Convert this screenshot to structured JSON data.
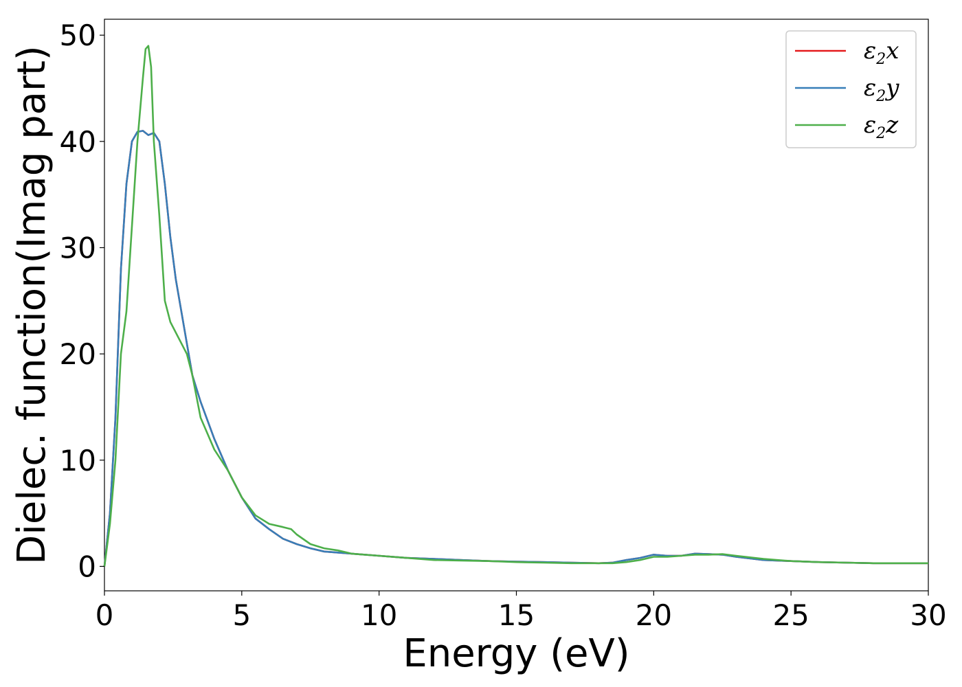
{
  "chart_data": {
    "type": "line",
    "title": "",
    "xlabel": "Energy (eV)",
    "ylabel": "Dielec. function(Imag part)",
    "xlim": [
      0,
      30
    ],
    "ylim": [
      -2.3,
      51.5
    ],
    "xticks": [
      0,
      5,
      10,
      15,
      20,
      25,
      30
    ],
    "xtick_labels": [
      "0",
      "5",
      "10",
      "15",
      "20",
      "25",
      "30"
    ],
    "yticks": [
      0,
      10,
      20,
      30,
      40,
      50
    ],
    "ytick_labels": [
      "0",
      "10",
      "20",
      "30",
      "40",
      "50"
    ],
    "grid": false,
    "legend_position": "top-right",
    "series": [
      {
        "name": "ε2x",
        "legend_base": "ε",
        "legend_sub": "2",
        "legend_suffix": "x",
        "color": "#e41a1c",
        "x": [
          0,
          0.2,
          0.4,
          0.6,
          0.8,
          1.0,
          1.2,
          1.4,
          1.5,
          1.6,
          1.8,
          2.0,
          2.2,
          2.4,
          2.6,
          3.0,
          3.2,
          3.5,
          4.0,
          4.5,
          5.0,
          5.5,
          6.0,
          6.5,
          7.0,
          7.5,
          8.0,
          9.0,
          10,
          11,
          12,
          13,
          14,
          15,
          16,
          17,
          18,
          18.5,
          19,
          19.5,
          20,
          20.5,
          21,
          21.5,
          22,
          22.5,
          23,
          24,
          25,
          26,
          27,
          28,
          29,
          30
        ],
        "y": [
          0,
          5,
          14,
          28,
          36,
          40,
          40.9,
          41,
          40.8,
          40.6,
          40.8,
          40,
          36,
          31,
          27,
          21,
          18,
          15.5,
          12,
          9,
          6.5,
          4.5,
          3.5,
          2.6,
          2.1,
          1.7,
          1.4,
          1.2,
          1.0,
          0.8,
          0.7,
          0.6,
          0.5,
          0.45,
          0.4,
          0.35,
          0.3,
          0.35,
          0.6,
          0.8,
          1.1,
          1.0,
          1.0,
          1.2,
          1.15,
          1.1,
          0.9,
          0.6,
          0.5,
          0.4,
          0.35,
          0.3,
          0.3,
          0.3
        ]
      },
      {
        "name": "ε2y",
        "legend_base": "ε",
        "legend_sub": "2",
        "legend_suffix": "y",
        "color": "#377eb8",
        "x": [
          0,
          0.2,
          0.4,
          0.6,
          0.8,
          1.0,
          1.2,
          1.4,
          1.5,
          1.6,
          1.8,
          2.0,
          2.2,
          2.4,
          2.6,
          3.0,
          3.2,
          3.5,
          4.0,
          4.5,
          5.0,
          5.5,
          6.0,
          6.5,
          7.0,
          7.5,
          8.0,
          9.0,
          10,
          11,
          12,
          13,
          14,
          15,
          16,
          17,
          18,
          18.5,
          19,
          19.5,
          20,
          20.5,
          21,
          21.5,
          22,
          22.5,
          23,
          24,
          25,
          26,
          27,
          28,
          29,
          30
        ],
        "y": [
          0,
          5,
          14,
          28,
          36,
          40,
          40.9,
          41,
          40.8,
          40.6,
          40.8,
          40,
          36,
          31,
          27,
          21,
          18,
          15.5,
          12,
          9,
          6.5,
          4.5,
          3.5,
          2.6,
          2.1,
          1.7,
          1.4,
          1.2,
          1.0,
          0.8,
          0.7,
          0.6,
          0.5,
          0.45,
          0.4,
          0.35,
          0.3,
          0.35,
          0.6,
          0.8,
          1.1,
          1.0,
          1.0,
          1.2,
          1.15,
          1.1,
          0.9,
          0.6,
          0.5,
          0.4,
          0.35,
          0.3,
          0.3,
          0.3
        ]
      },
      {
        "name": "ε2z",
        "legend_base": "ε",
        "legend_sub": "2",
        "legend_suffix": "z",
        "color": "#4daf4a",
        "x": [
          0,
          0.2,
          0.4,
          0.6,
          0.8,
          1.0,
          1.2,
          1.4,
          1.5,
          1.6,
          1.7,
          1.8,
          2.0,
          2.2,
          2.4,
          2.6,
          3.0,
          3.2,
          3.5,
          4.0,
          4.5,
          5.0,
          5.5,
          6.0,
          6.5,
          6.8,
          7.0,
          7.5,
          8.0,
          8.5,
          9.0,
          10,
          11,
          12,
          13,
          14,
          15,
          16,
          17,
          18,
          18.5,
          19,
          19.5,
          20,
          20.5,
          21,
          21.5,
          22,
          22.5,
          23,
          24,
          25,
          26,
          27,
          28,
          29,
          30
        ],
        "y": [
          0,
          4,
          10,
          20,
          24,
          32,
          40,
          46,
          48.7,
          49,
          47,
          40,
          33,
          25,
          23,
          22,
          20,
          18,
          14,
          11,
          9,
          6.5,
          4.8,
          4.0,
          3.7,
          3.5,
          3.0,
          2.1,
          1.7,
          1.5,
          1.2,
          1.0,
          0.8,
          0.6,
          0.55,
          0.5,
          0.4,
          0.35,
          0.3,
          0.3,
          0.3,
          0.4,
          0.6,
          0.9,
          0.9,
          1.0,
          1.1,
          1.1,
          1.15,
          1.0,
          0.7,
          0.5,
          0.4,
          0.35,
          0.3,
          0.3,
          0.3
        ]
      }
    ]
  }
}
